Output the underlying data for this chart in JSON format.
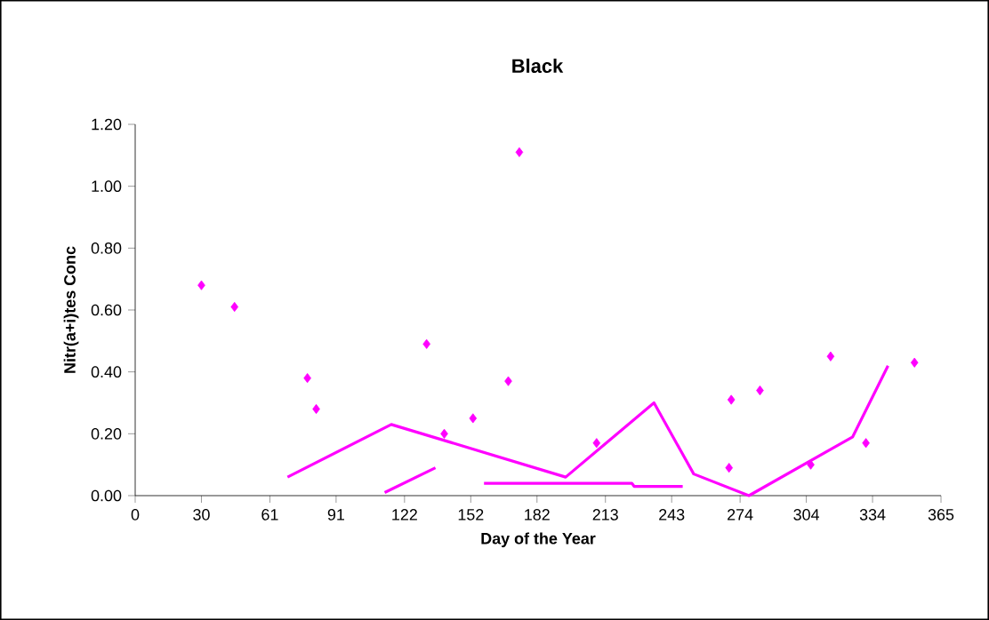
{
  "chart_data": {
    "type": "scatter",
    "title": "Black",
    "xlabel": "Day of the Year",
    "ylabel": "Nitr(a+i)tes Conc",
    "xlim": [
      0,
      365
    ],
    "xticks": [
      0,
      30,
      61,
      91,
      122,
      152,
      182,
      213,
      243,
      274,
      304,
      334,
      365
    ],
    "ylim": [
      0,
      1.2
    ],
    "yticks": [
      {
        "value": 0,
        "label": "0.00"
      },
      {
        "value": 0.2,
        "label": "0.20"
      },
      {
        "value": 0.4,
        "label": "0.40"
      },
      {
        "value": 0.6,
        "label": "0.60"
      },
      {
        "value": 0.8,
        "label": "0.80"
      },
      {
        "value": 1.0,
        "label": "1.00"
      },
      {
        "value": 1.2,
        "label": "1.20"
      }
    ],
    "grid": false,
    "series": [
      {
        "color": "#ff00ff",
        "marker": "diamond",
        "x": [
          30,
          45,
          78,
          82,
          132,
          140,
          153,
          169,
          174,
          209,
          270,
          269,
          283,
          306,
          315,
          331,
          353
        ],
        "values": [
          0.68,
          0.61,
          0.38,
          0.28,
          0.49,
          0.2,
          0.25,
          0.37,
          1.11,
          0.17,
          0.31,
          0.09,
          0.34,
          0.1,
          0.45,
          0.17,
          0.43
        ]
      },
      {
        "type": "line",
        "color": "#ff00ff",
        "marker": "none",
        "x": [
          69,
          116,
          195,
          235,
          253,
          278,
          325,
          341
        ],
        "values": [
          0.06,
          0.23,
          0.06,
          0.3,
          0.07,
          0,
          0.19,
          0.42
        ]
      },
      {
        "type": "line",
        "color": "#ff00ff",
        "marker": "none",
        "x": [
          113,
          136
        ],
        "values": [
          0.01,
          0.09
        ]
      },
      {
        "type": "line",
        "color": "#ff00ff",
        "marker": "none",
        "x": [
          158,
          225,
          226,
          248
        ],
        "values": [
          0.04,
          0.04,
          0.03,
          0.03
        ]
      }
    ]
  }
}
